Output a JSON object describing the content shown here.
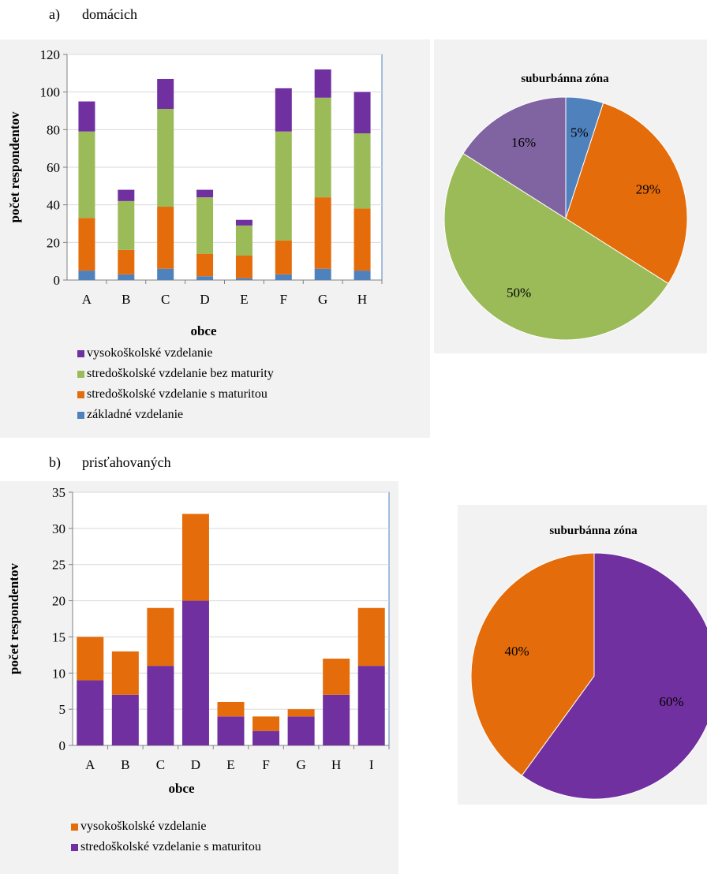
{
  "captions": {
    "a_letter": "a)",
    "a_text": "domácich",
    "b_letter": "b)",
    "b_text": "prisťahovaných"
  },
  "colors": {
    "zakladne": "#4f81bd",
    "s_maturitou": "#e46c0a",
    "bez_maturity": "#9bbb59",
    "vysokoskolske": "#7030a0",
    "pie_violet": "#8064a2",
    "grid": "#d9d9d9",
    "axis_border": "#4f81bd"
  },
  "chart_data": [
    {
      "type": "bar",
      "stacked": true,
      "title": "",
      "xlabel": "obce",
      "ylabel": "počet respondentov",
      "ylim": [
        0,
        120
      ],
      "yticks": [
        0,
        20,
        40,
        60,
        80,
        100,
        120
      ],
      "grid": true,
      "legend_position": "bottom",
      "categories": [
        "A",
        "B",
        "C",
        "D",
        "E",
        "F",
        "G",
        "H"
      ],
      "series": [
        {
          "name": "základné vzdelanie",
          "color": "#4f81bd",
          "values": [
            5,
            3,
            6,
            2,
            1,
            3,
            6,
            5
          ]
        },
        {
          "name": "stredoškolské vzdelanie s maturitou",
          "color": "#e46c0a",
          "values": [
            28,
            13,
            33,
            12,
            12,
            18,
            38,
            33
          ]
        },
        {
          "name": "stredoškolské vzdelanie bez maturity",
          "color": "#9bbb59",
          "values": [
            46,
            26,
            52,
            30,
            16,
            58,
            53,
            40
          ]
        },
        {
          "name": "vysokoškolské vzdelanie",
          "color": "#7030a0",
          "values": [
            16,
            6,
            16,
            4,
            3,
            23,
            15,
            22
          ]
        }
      ],
      "legend_order": [
        "vysokoškolské vzdelanie",
        "stredoškolské vzdelanie bez maturity",
        "stredoškolské vzdelanie s maturitou",
        "základné vzdelanie"
      ]
    },
    {
      "type": "pie",
      "title": "suburbánna zóna",
      "slices": [
        {
          "label": "5%",
          "value": 5,
          "color": "#4f81bd"
        },
        {
          "label": "29%",
          "value": 29,
          "color": "#e46c0a"
        },
        {
          "label": "50%",
          "value": 50,
          "color": "#9bbb59"
        },
        {
          "label": "16%",
          "value": 16,
          "color": "#8064a2"
        }
      ]
    },
    {
      "type": "bar",
      "stacked": true,
      "title": "",
      "xlabel": "obce",
      "ylabel": "počet respondentov",
      "ylim": [
        0,
        35
      ],
      "yticks": [
        0,
        5,
        10,
        15,
        20,
        25,
        30,
        35
      ],
      "grid": true,
      "legend_position": "bottom",
      "categories": [
        "A",
        "B",
        "C",
        "D",
        "E",
        "F",
        "G",
        "H",
        "I"
      ],
      "series": [
        {
          "name": "stredoškolské vzdelanie s maturitou",
          "color": "#7030a0",
          "values": [
            9,
            7,
            11,
            20,
            4,
            2,
            4,
            7,
            11
          ]
        },
        {
          "name": "vysokoškolské vzdelanie",
          "color": "#e46c0a",
          "values": [
            6,
            6,
            8,
            12,
            2,
            2,
            1,
            5,
            8
          ]
        }
      ],
      "legend_order": [
        "vysokoškolské vzdelanie",
        "stredoškolské vzdelanie s maturitou"
      ]
    },
    {
      "type": "pie",
      "title": "suburbánna zóna",
      "slices": [
        {
          "label": "60%",
          "value": 60,
          "color": "#7030a0"
        },
        {
          "label": "40%",
          "value": 40,
          "color": "#e46c0a"
        }
      ]
    }
  ]
}
